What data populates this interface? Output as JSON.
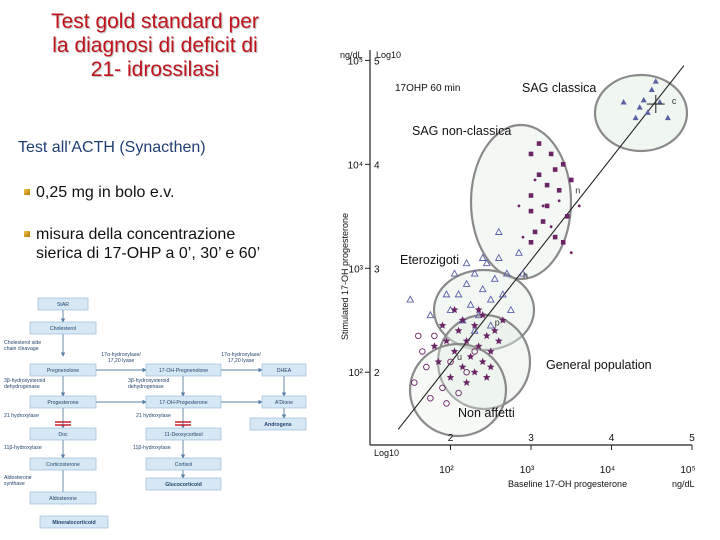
{
  "slide": {
    "title_lines": [
      "Test gold standard per",
      "la diagnosi di deficit di",
      "21- idrossilasi"
    ],
    "subtitle": "Test all’ACTH (Synacthen)",
    "bullets": [
      "0,25 mg in bolo e.v.",
      "misura della concentrazione",
      "sierica di 17-OHP a 0’, 30’ e 60’"
    ]
  },
  "pathway": {
    "nodes": {
      "star": "StAR",
      "cholesterol": "Cholesterol",
      "side_chain": [
        "Cholesterol side",
        "chain cleavage"
      ],
      "pregnenolone": "Pregnenolone",
      "ohpreg": "17-OH-Pregnenolone",
      "dhea": "DHEA",
      "hsd1": [
        "3β-hydroxysteroid",
        "dehydrogenase"
      ],
      "hsd2": [
        "3β-hydroxysteroid",
        "dehydrogenase"
      ],
      "progesterone": "Progesterone",
      "ohprog": "17-OH-Progesterone",
      "adione": "A'Dione",
      "lyase1": [
        "17α-hydroxylase/",
        "17,20 lyase"
      ],
      "lyase2": [
        "17α-hydroxylase/",
        "17,20 lyase"
      ],
      "h21a": "21 hydroxylase",
      "h21b": "21 hydroxylase",
      "androgens": "Androgens",
      "doc": "Doc",
      "deoxycortisol": "11-Deoxycortisol",
      "h11a": "11β-hydroxylase",
      "h11b": "11β-hydroxylase",
      "corticosterone": "Corticosterone",
      "cortisol": "Cortisol",
      "glucocorticoid": "Glucocorticoid",
      "aldo_synth": [
        "Aldosterone",
        "synthase"
      ],
      "aldosterone": "Aldosterone",
      "mineralocorticoid": "Mineralocorticoid"
    }
  },
  "chart_data": {
    "type": "scatter",
    "title": "17OHP 60 min",
    "xlabel": "Baseline   17-OH progesterone",
    "ylabel": "Stimulated   17-OH progesterone",
    "x_unit": "ng/dL",
    "y_unit": "ng/dL",
    "y_unit_top": "Log10",
    "x_log_label": "Log10",
    "xlim": [
      1,
      5
    ],
    "ylim": [
      1.3,
      5.1
    ],
    "x_ticks": [
      {
        "v": 2,
        "log": "2",
        "lin": "10²"
      },
      {
        "v": 3,
        "log": "3",
        "lin": "10³"
      },
      {
        "v": 4,
        "log": "4",
        "lin": "10⁴"
      },
      {
        "v": 5,
        "log": "5",
        "lin": "10⁵"
      }
    ],
    "y_ticks": [
      {
        "v": 2,
        "log": "2",
        "lin": "10²"
      },
      {
        "v": 3,
        "log": "3",
        "lin": "10³"
      },
      {
        "v": 4,
        "log": "4",
        "lin": "10⁴"
      },
      {
        "v": 5,
        "log": "5",
        "lin": "10⁵"
      }
    ],
    "regression_line": [
      [
        1.35,
        1.45
      ],
      [
        4.9,
        4.95
      ]
    ],
    "ellipse_labels": {
      "classic": "SAG classica",
      "nonclassic": "SAG non-classica",
      "hetero": "Eterozigoti",
      "general": "General population",
      "unaffected": "Non affetti"
    },
    "point_labels": {
      "c": "c",
      "n": "n",
      "h": "h",
      "p": "p",
      "u": "u"
    },
    "series": [
      {
        "name": "classica",
        "marker": "triangle-filled",
        "points": [
          [
            4.15,
            4.6
          ],
          [
            4.35,
            4.55
          ],
          [
            4.5,
            4.72
          ],
          [
            4.6,
            4.6
          ],
          [
            4.45,
            4.5
          ],
          [
            4.7,
            4.45
          ],
          [
            4.3,
            4.45
          ],
          [
            4.55,
            4.8
          ],
          [
            4.4,
            4.62
          ]
        ]
      },
      {
        "name": "classica-mean",
        "marker": "plus",
        "points": [
          [
            4.55,
            4.58
          ]
        ]
      },
      {
        "name": "non-classica",
        "marker": "square",
        "points": [
          [
            3.0,
            4.1
          ],
          [
            3.1,
            3.9
          ],
          [
            3.0,
            3.7
          ],
          [
            3.2,
            3.8
          ],
          [
            3.25,
            4.1
          ],
          [
            3.3,
            3.95
          ],
          [
            3.2,
            3.6
          ],
          [
            3.35,
            3.75
          ],
          [
            3.1,
            4.2
          ],
          [
            3.4,
            4.0
          ],
          [
            3.0,
            3.55
          ],
          [
            3.15,
            3.45
          ],
          [
            3.45,
            3.5
          ],
          [
            3.3,
            3.3
          ],
          [
            3.5,
            3.85
          ],
          [
            3.05,
            3.35
          ],
          [
            3.4,
            3.25
          ],
          [
            3.0,
            3.25
          ]
        ]
      },
      {
        "name": "non-classica-extra",
        "marker": "dot",
        "points": [
          [
            2.85,
            3.6
          ],
          [
            3.05,
            3.85
          ],
          [
            3.15,
            3.6
          ],
          [
            3.25,
            3.4
          ],
          [
            3.35,
            3.65
          ],
          [
            2.9,
            3.3
          ],
          [
            3.6,
            3.6
          ],
          [
            3.5,
            3.15
          ]
        ]
      },
      {
        "name": "eterozigoti",
        "marker": "triangle-open",
        "points": [
          [
            2.0,
            2.6
          ],
          [
            2.1,
            2.75
          ],
          [
            2.2,
            2.85
          ],
          [
            2.25,
            2.65
          ],
          [
            2.3,
            2.95
          ],
          [
            2.35,
            2.55
          ],
          [
            2.4,
            2.8
          ],
          [
            2.45,
            3.05
          ],
          [
            2.5,
            2.7
          ],
          [
            2.55,
            2.9
          ],
          [
            2.6,
            3.1
          ],
          [
            2.15,
            2.5
          ],
          [
            2.3,
            2.4
          ],
          [
            2.5,
            2.45
          ],
          [
            2.65,
            2.75
          ],
          [
            2.4,
            3.1
          ],
          [
            2.7,
            2.95
          ],
          [
            2.2,
            3.05
          ],
          [
            2.05,
            2.95
          ],
          [
            2.75,
            2.6
          ],
          [
            1.95,
            2.75
          ],
          [
            1.5,
            2.7
          ],
          [
            1.75,
            2.55
          ],
          [
            2.6,
            3.35
          ],
          [
            2.85,
            3.15
          ],
          [
            2.9,
            2.95
          ]
        ]
      },
      {
        "name": "general-population",
        "marker": "star",
        "points": [
          [
            1.85,
            2.1
          ],
          [
            1.95,
            2.3
          ],
          [
            2.05,
            2.2
          ],
          [
            2.1,
            2.4
          ],
          [
            2.15,
            2.05
          ],
          [
            2.2,
            2.3
          ],
          [
            2.25,
            2.15
          ],
          [
            2.3,
            2.45
          ],
          [
            2.35,
            2.25
          ],
          [
            2.4,
            2.1
          ],
          [
            2.45,
            2.35
          ],
          [
            2.5,
            2.2
          ],
          [
            2.0,
            1.95
          ],
          [
            2.15,
            2.5
          ],
          [
            2.3,
            2.0
          ],
          [
            2.55,
            2.4
          ],
          [
            2.05,
            2.6
          ],
          [
            2.4,
            2.55
          ],
          [
            1.9,
            2.45
          ],
          [
            2.6,
            2.3
          ],
          [
            2.2,
            1.9
          ],
          [
            2.5,
            2.05
          ],
          [
            2.35,
            2.6
          ],
          [
            2.65,
            2.5
          ],
          [
            1.8,
            2.25
          ],
          [
            2.45,
            1.95
          ]
        ]
      },
      {
        "name": "non-affetti",
        "marker": "circle",
        "points": [
          [
            1.55,
            1.9
          ],
          [
            1.7,
            2.05
          ],
          [
            1.75,
            1.75
          ],
          [
            1.9,
            1.85
          ],
          [
            2.0,
            2.1
          ],
          [
            2.1,
            1.8
          ],
          [
            1.65,
            2.2
          ],
          [
            1.8,
            2.35
          ],
          [
            2.2,
            2.0
          ],
          [
            1.95,
            1.7
          ],
          [
            1.6,
            2.35
          ],
          [
            2.3,
            2.2
          ]
        ]
      }
    ]
  },
  "colors": {
    "title": "#c0141c",
    "subtitle": "#1f3f73",
    "marker_purple": "#6b2466",
    "marker_blue": "#5a5fa8",
    "ellipse": "#8a8a8a",
    "ellipse_fill": "#e4eee4",
    "pathway_box": "#d6e7f5",
    "pathway_label": "#24456b",
    "enzyme_block": "#c0141c"
  }
}
